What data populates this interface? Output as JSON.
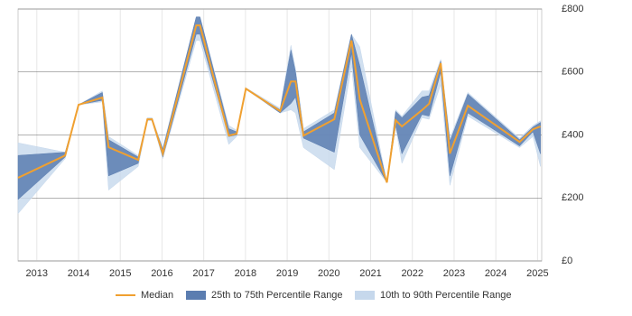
{
  "chart_data": {
    "type": "range-line",
    "x": [
      2012.55,
      2013.68,
      2014.0,
      2014.57,
      2014.72,
      2015.43,
      2015.65,
      2015.76,
      2016.02,
      2016.82,
      2016.91,
      2017.6,
      2017.79,
      2018.01,
      2018.83,
      2019.09,
      2019.2,
      2019.39,
      2020.13,
      2020.54,
      2020.74,
      2021.39,
      2021.6,
      2021.75,
      2022.23,
      2022.4,
      2022.68,
      2022.9,
      2023.33,
      2024.57,
      2024.89,
      2025.07
    ],
    "series": [
      {
        "name": "10th to 90th Percentile Range",
        "color": "#c6d8ec",
        "low": [
          150,
          325,
          496,
          505,
          225,
          300,
          445,
          445,
          325,
          700,
          700,
          370,
          395,
          545,
          470,
          480,
          470,
          360,
          290,
          620,
          360,
          249,
          425,
          310,
          455,
          450,
          560,
          240,
          460,
          360,
          395,
          300
        ],
        "high": [
          375,
          345,
          496,
          540,
          395,
          335,
          455,
          455,
          360,
          775,
          775,
          430,
          415,
          550,
          485,
          685,
          610,
          420,
          480,
          720,
          680,
          249,
          480,
          460,
          540,
          540,
          640,
          390,
          535,
          390,
          430,
          445
        ]
      },
      {
        "name": "25th to 75th Percentile Range",
        "color": "#5b7db0",
        "low": [
          195,
          330,
          496,
          510,
          270,
          310,
          450,
          450,
          330,
          720,
          720,
          395,
          400,
          547,
          470,
          500,
          520,
          390,
          345,
          660,
          400,
          249,
          430,
          340,
          465,
          460,
          600,
          270,
          470,
          365,
          410,
          340
        ],
        "high": [
          335,
          345,
          496,
          535,
          385,
          330,
          450,
          450,
          355,
          775,
          775,
          420,
          410,
          547,
          480,
          670,
          600,
          410,
          470,
          720,
          620,
          249,
          475,
          455,
          520,
          525,
          635,
          380,
          530,
          385,
          425,
          440
        ]
      },
      {
        "name": "Median",
        "color": "#f0a030",
        "values": [
          264,
          335,
          496,
          519,
          361,
          321,
          450,
          450,
          341,
          748,
          748,
          398,
          404,
          547,
          476,
          570,
          570,
          398,
          450,
          700,
          513,
          249,
          447,
          427,
          479,
          499,
          628,
          341,
          493,
          378,
          418,
          427
        ]
      }
    ],
    "xlim": [
      2012.55,
      2025.1
    ],
    "xticks": [
      2013,
      2014,
      2015,
      2016,
      2017,
      2018,
      2019,
      2020,
      2021,
      2022,
      2023,
      2024,
      2025
    ],
    "ylim": [
      0,
      800
    ],
    "yticks": [
      {
        "value": 0,
        "label": "£0"
      },
      {
        "value": 200,
        "label": "£200"
      },
      {
        "value": 400,
        "label": "£400"
      },
      {
        "value": 600,
        "label": "£600"
      },
      {
        "value": 800,
        "label": "£800"
      }
    ],
    "grid": true
  }
}
